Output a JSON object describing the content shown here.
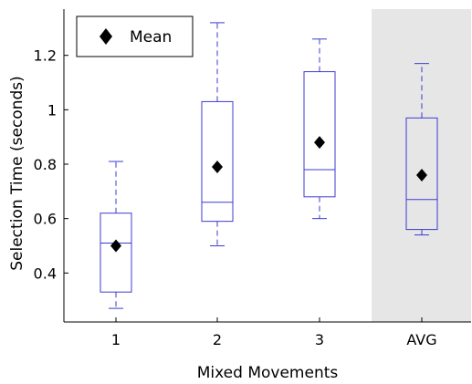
{
  "chart_data": {
    "type": "box",
    "xlabel": "Mixed Movements",
    "ylabel": "Selection Time (seconds)",
    "ylim": [
      0.22,
      1.37
    ],
    "yticks": [
      0.4,
      0.6,
      0.8,
      1,
      1.2
    ],
    "ytick_labels": [
      "0.4",
      "0.6",
      "0.8",
      "1",
      "1.2"
    ],
    "categories": [
      "1",
      "2",
      "3",
      "AVG"
    ],
    "legend": {
      "label": "Mean",
      "marker": "diamond",
      "position": "top-left"
    },
    "highlighted_category": "AVG",
    "boxes": [
      {
        "category": "1",
        "whisker_low": 0.27,
        "q1": 0.33,
        "median": 0.51,
        "q3": 0.62,
        "whisker_high": 0.81,
        "mean": 0.5
      },
      {
        "category": "2",
        "whisker_low": 0.5,
        "q1": 0.59,
        "median": 0.66,
        "q3": 1.03,
        "whisker_high": 1.32,
        "mean": 0.79
      },
      {
        "category": "3",
        "whisker_low": 0.6,
        "q1": 0.68,
        "median": 0.78,
        "q3": 1.14,
        "whisker_high": 1.26,
        "mean": 0.88
      },
      {
        "category": "AVG",
        "whisker_low": 0.54,
        "q1": 0.56,
        "median": 0.67,
        "q3": 0.97,
        "whisker_high": 1.17,
        "mean": 0.76
      }
    ],
    "colors": {
      "box": "#3b3bd1",
      "mean_marker": "#000000",
      "highlight_bg": "#e6e6e6",
      "axis": "#000000"
    }
  }
}
